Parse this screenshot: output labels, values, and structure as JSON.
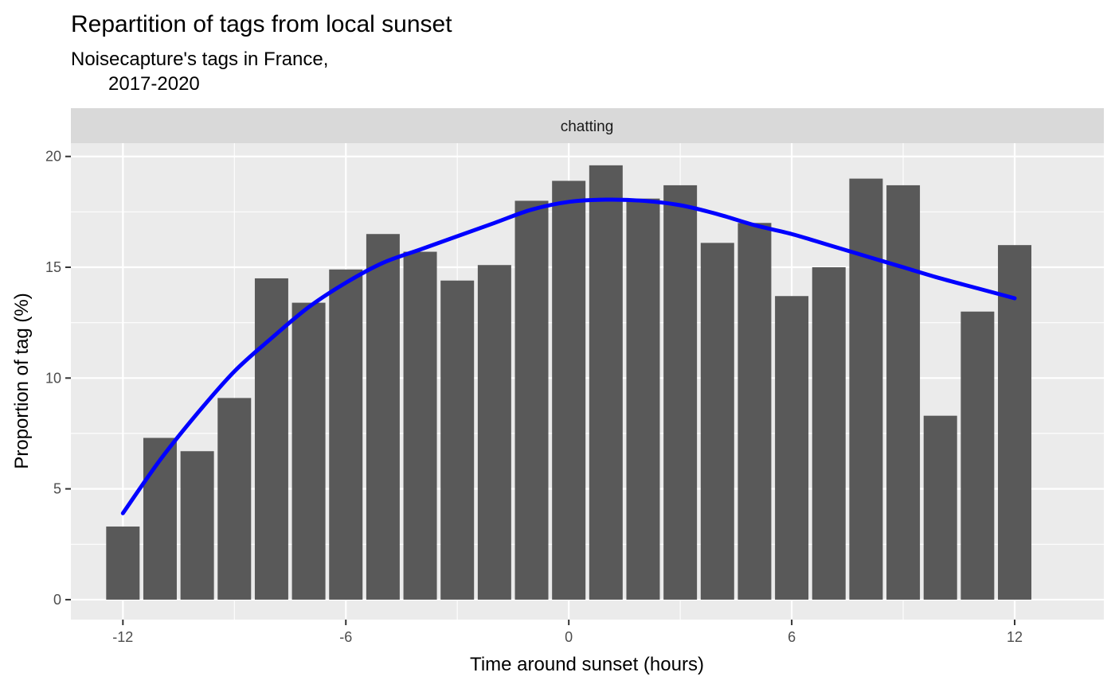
{
  "chart_data": {
    "type": "bar",
    "title": "Repartition of tags from local sunset",
    "subtitle_lines": [
      "Noisecapture's tags in France,",
      "2017-2020"
    ],
    "facet_label": "chatting",
    "xlabel": "Time around sunset (hours)",
    "ylabel": "Proportion of tag (%)",
    "x": [
      -12,
      -11,
      -10,
      -9,
      -8,
      -7,
      -6,
      -5,
      -4,
      -3,
      -2,
      -1,
      0,
      1,
      2,
      3,
      4,
      5,
      6,
      7,
      8,
      9,
      10,
      11,
      12
    ],
    "values": [
      3.3,
      7.3,
      6.7,
      9.1,
      14.5,
      13.4,
      14.9,
      16.5,
      15.7,
      14.4,
      15.1,
      18.0,
      18.9,
      19.6,
      18.1,
      18.7,
      16.1,
      17.0,
      13.7,
      15.0,
      19.0,
      18.7,
      8.3,
      13.0,
      16.0
    ],
    "smooth": {
      "color": "#0000ff",
      "x": [
        -12,
        -11,
        -10,
        -9,
        -8,
        -7,
        -6,
        -5,
        -4,
        -3,
        -2,
        -1,
        0,
        1,
        2,
        3,
        4,
        5,
        6,
        7,
        8,
        9,
        10,
        11,
        12
      ],
      "y": [
        3.9,
        6.3,
        8.4,
        10.3,
        11.8,
        13.2,
        14.3,
        15.2,
        15.8,
        16.4,
        17.0,
        17.6,
        17.95,
        18.05,
        18.0,
        17.8,
        17.4,
        16.9,
        16.5,
        16.0,
        15.5,
        15.0,
        14.5,
        14.05,
        13.6
      ]
    },
    "bar_color": "#595959",
    "panel_background": "#ebebeb",
    "strip_background": "#d9d9d9",
    "xlim": [
      -13.4,
      14.4
    ],
    "ylim": [
      -0.9,
      20.6
    ],
    "x_ticks": [
      -12,
      -6,
      0,
      6,
      12
    ],
    "x_tick_labels": [
      "-12",
      "-6",
      "0",
      "6",
      "12"
    ],
    "y_ticks": [
      0,
      5,
      10,
      15,
      20
    ],
    "y_tick_labels": [
      "0",
      "5",
      "10",
      "15",
      "20"
    ],
    "grid": true,
    "legend": "none"
  }
}
